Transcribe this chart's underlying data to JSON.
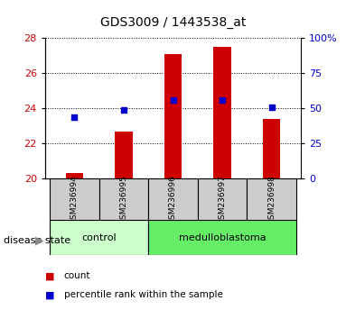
{
  "title": "GDS3009 / 1443538_at",
  "samples": [
    "GSM236994",
    "GSM236995",
    "GSM236996",
    "GSM236997",
    "GSM236998"
  ],
  "bar_values": [
    20.3,
    22.7,
    27.1,
    27.5,
    23.4
  ],
  "bar_base": 20.0,
  "percentile_left_axis": [
    23.5,
    23.9,
    24.5,
    24.5,
    24.05
  ],
  "bar_color": "#cc0000",
  "percentile_color": "#0000cc",
  "ylim_left": [
    20,
    28
  ],
  "ylim_right": [
    0,
    100
  ],
  "yticks_left": [
    20,
    22,
    24,
    26,
    28
  ],
  "yticks_right": [
    0,
    25,
    50,
    75,
    100
  ],
  "yticklabels_right": [
    "0",
    "25",
    "50",
    "75",
    "100%"
  ],
  "groups": [
    {
      "label": "control",
      "indices": [
        0,
        1
      ],
      "color": "#ccffcc"
    },
    {
      "label": "medulloblastoma",
      "indices": [
        2,
        3,
        4
      ],
      "color": "#66ee66"
    }
  ],
  "disease_state_label": "disease state",
  "legend_items": [
    {
      "label": "count",
      "color": "#cc0000"
    },
    {
      "label": "percentile rank within the sample",
      "color": "#0000cc"
    }
  ],
  "tick_label_color_left": "#cc0000",
  "tick_label_color_right": "#0000cc",
  "sample_box_color": "#cccccc",
  "bar_width": 0.35
}
